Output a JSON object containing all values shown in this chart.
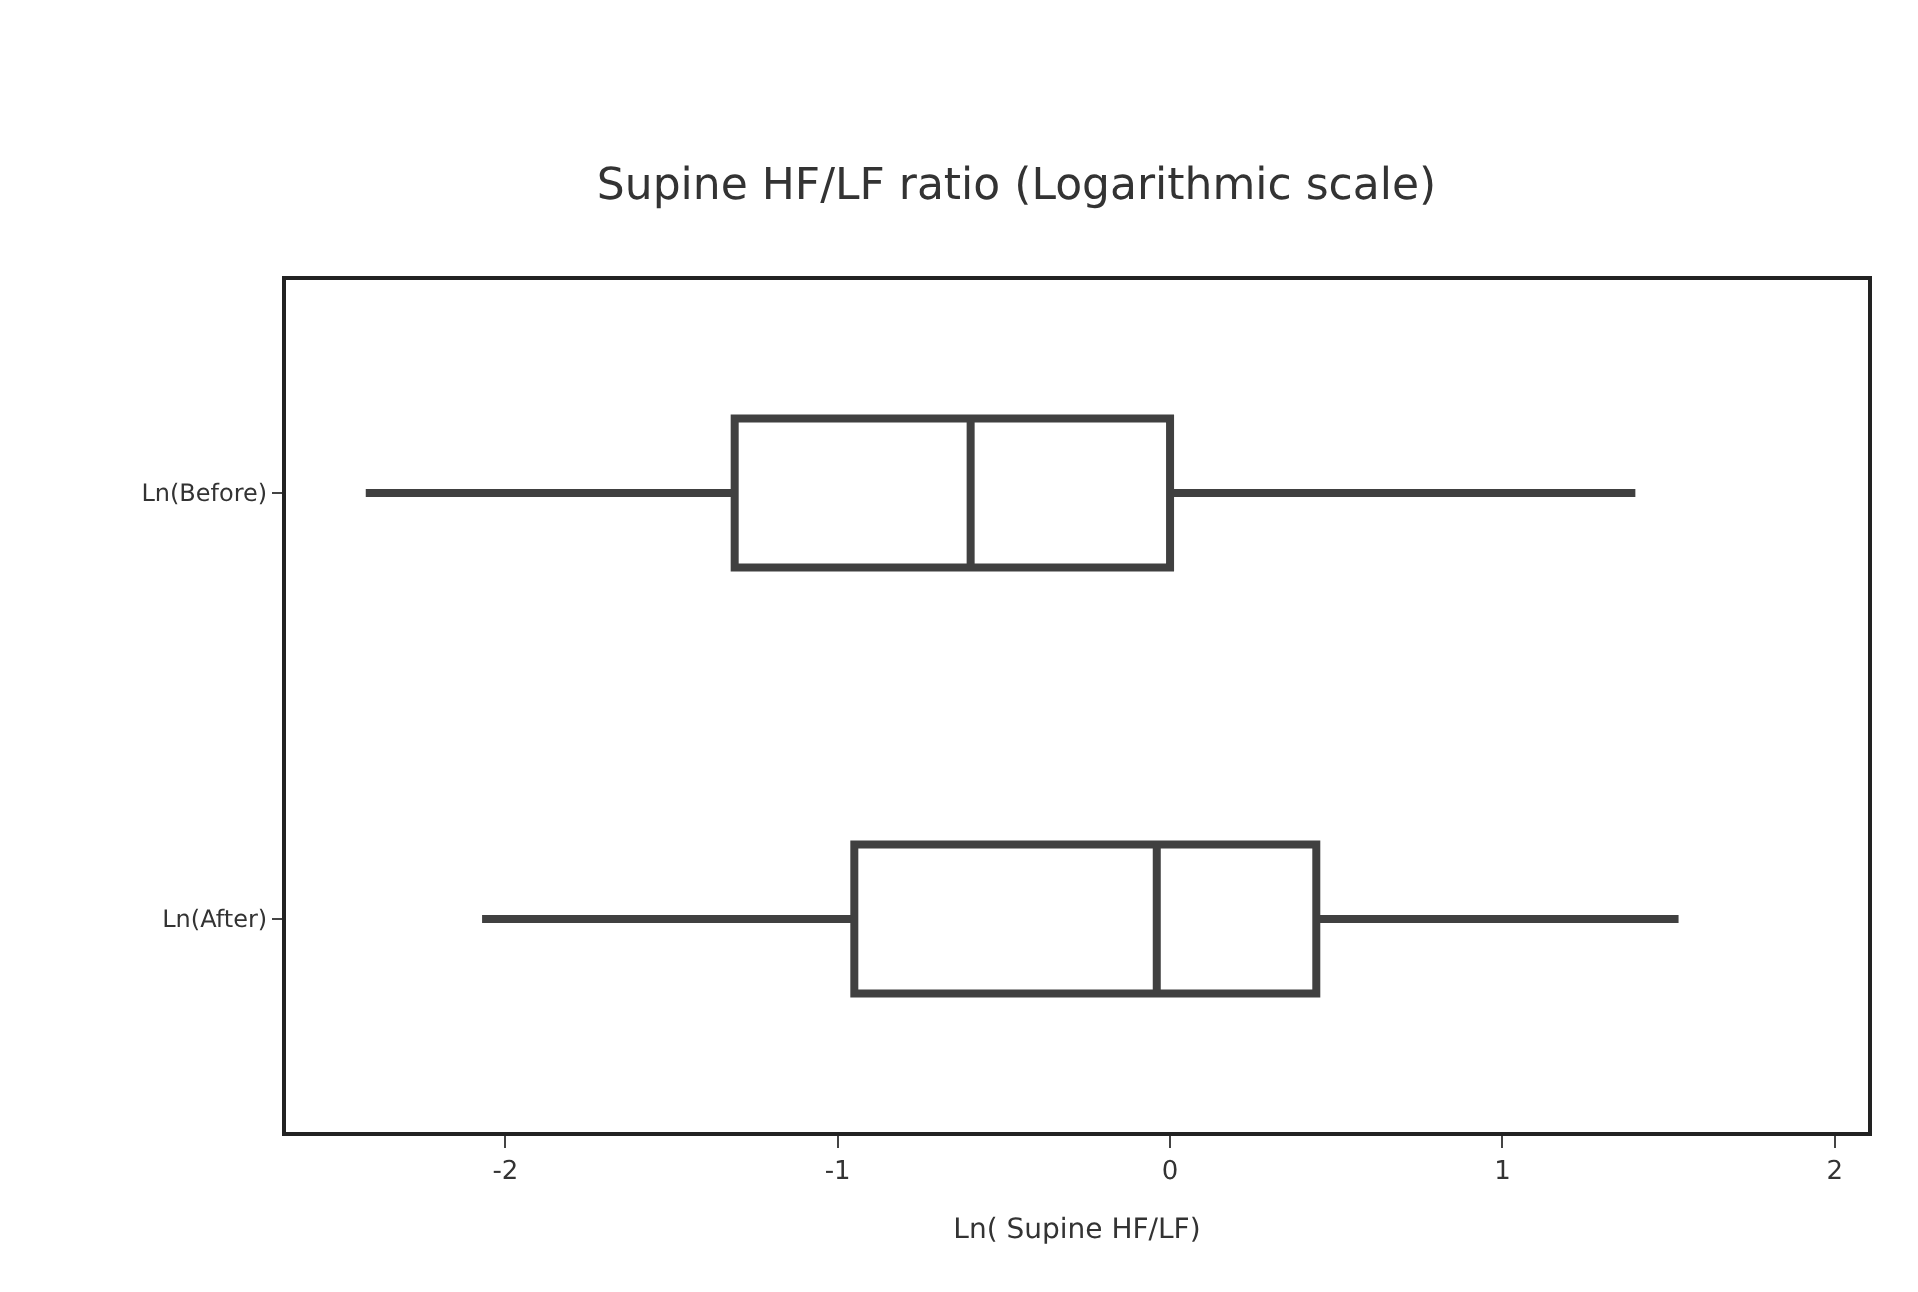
{
  "chart_data": {
    "type": "box",
    "title": "Supine HF/LF ratio (Logarithmic scale)",
    "xlabel": "Ln( Supine HF/LF)",
    "orientation": "horizontal",
    "categories": [
      "Ln(Before)",
      "Ln(After)"
    ],
    "boxes": [
      {
        "low": -2.42,
        "q1": -1.31,
        "median": -0.6,
        "q3": 0.0,
        "high": 1.4
      },
      {
        "low": -2.07,
        "q1": -0.95,
        "median": -0.04,
        "q3": 0.44,
        "high": 1.53
      }
    ],
    "color": "#404040",
    "xlim": [
      -2.66,
      2.1
    ],
    "xticks": [
      -2,
      -1,
      0,
      1,
      2
    ],
    "grid": false,
    "legend": false
  }
}
